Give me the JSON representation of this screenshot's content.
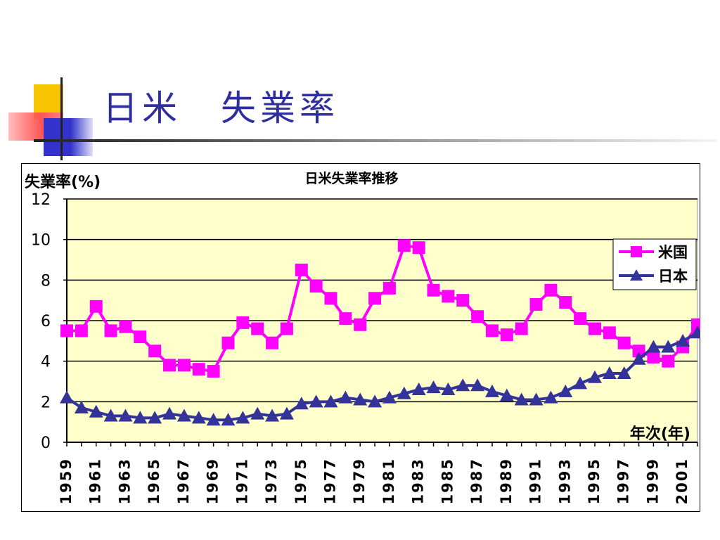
{
  "slide": {
    "title": "日米　失業率"
  },
  "chart_data": {
    "type": "line",
    "title": "日米失業率推移",
    "ylabel": "失業率(%)",
    "xlabel": "年次(年)",
    "ylim": [
      0,
      12
    ],
    "y_ticks": [
      0,
      2,
      4,
      6,
      8,
      10,
      12
    ],
    "grid": true,
    "legend_position": "top-right",
    "x": [
      1959,
      1960,
      1961,
      1962,
      1963,
      1964,
      1965,
      1966,
      1967,
      1968,
      1969,
      1970,
      1971,
      1972,
      1973,
      1974,
      1975,
      1976,
      1977,
      1978,
      1979,
      1980,
      1981,
      1982,
      1983,
      1984,
      1985,
      1986,
      1987,
      1988,
      1989,
      1990,
      1991,
      1992,
      1993,
      1994,
      1995,
      1996,
      1997,
      1998,
      1999,
      2000,
      2001,
      2002
    ],
    "x_tick_labels": [
      "1959",
      "1961",
      "1963",
      "1965",
      "1967",
      "1969",
      "1971",
      "1973",
      "1975",
      "1977",
      "1979",
      "1981",
      "1983",
      "1985",
      "1987",
      "1989",
      "1991",
      "1993",
      "1995",
      "1997",
      "1999",
      "2001"
    ],
    "series": [
      {
        "name": "米国",
        "color": "#ff00ff",
        "marker": "square",
        "values": [
          5.5,
          5.5,
          6.7,
          5.5,
          5.7,
          5.2,
          4.5,
          3.8,
          3.8,
          3.6,
          3.5,
          4.9,
          5.9,
          5.6,
          4.9,
          5.6,
          8.5,
          7.7,
          7.1,
          6.1,
          5.8,
          7.1,
          7.6,
          9.7,
          9.6,
          7.5,
          7.2,
          7.0,
          6.2,
          5.5,
          5.3,
          5.6,
          6.8,
          7.5,
          6.9,
          6.1,
          5.6,
          5.4,
          4.9,
          4.5,
          4.2,
          4.0,
          4.7,
          5.8
        ]
      },
      {
        "name": "日本",
        "color": "#333399",
        "marker": "triangle",
        "values": [
          2.2,
          1.7,
          1.5,
          1.3,
          1.3,
          1.2,
          1.2,
          1.4,
          1.3,
          1.2,
          1.1,
          1.1,
          1.2,
          1.4,
          1.3,
          1.4,
          1.9,
          2.0,
          2.0,
          2.2,
          2.1,
          2.0,
          2.2,
          2.4,
          2.6,
          2.7,
          2.6,
          2.8,
          2.8,
          2.5,
          2.3,
          2.1,
          2.1,
          2.2,
          2.5,
          2.9,
          3.2,
          3.4,
          3.4,
          4.1,
          4.7,
          4.7,
          5.0,
          5.4
        ]
      }
    ]
  },
  "colors": {
    "plot_bg": "#ffffcc",
    "title_color": "#2e2e9e"
  }
}
